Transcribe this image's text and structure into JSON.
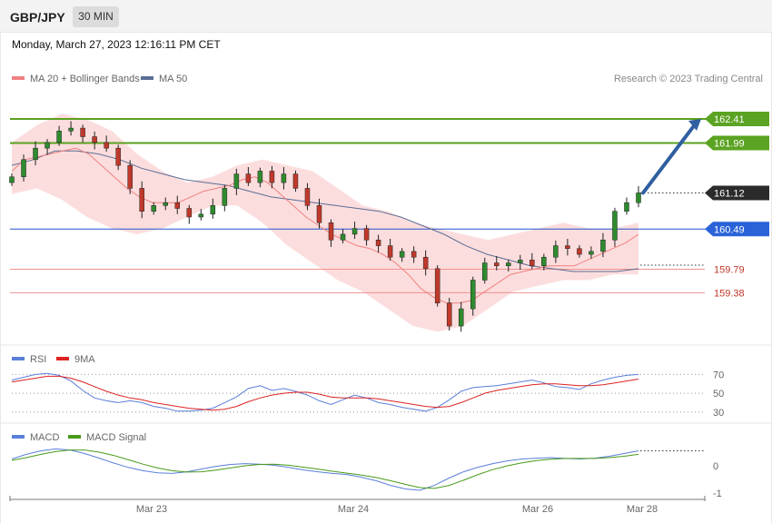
{
  "header": {
    "symbol": "GBP/JPY",
    "timeframe": "30 MIN",
    "datetime": "Monday, March 27, 2023 12:16:11 PM CET"
  },
  "chart_data": [
    {
      "type": "candlestick",
      "legend": [
        "MA 20 + Bollinger Bands",
        "MA 50"
      ],
      "credit": "Research © 2023 Trading Central",
      "ylim": [
        158.5,
        162.9
      ],
      "x_ticks": [
        "Mar 23",
        "Mar 24",
        "Mar 26",
        "Mar 28"
      ],
      "levels": [
        {
          "value": 162.41,
          "label": "162.41",
          "kind": "resistance"
        },
        {
          "value": 161.99,
          "label": "161.99",
          "kind": "resistance"
        },
        {
          "value": 161.12,
          "label": "161.12",
          "kind": "last"
        },
        {
          "value": 160.49,
          "label": "160.49",
          "kind": "pivot"
        },
        {
          "value": 159.79,
          "label": "159.79",
          "kind": "support"
        },
        {
          "value": 159.38,
          "label": "159.38",
          "kind": "support"
        }
      ],
      "projection_arrow": {
        "from": 161.12,
        "to": 162.41
      },
      "colors": {
        "up": "#2e8b2e",
        "down": "#c0392b",
        "ma20": "#f08080",
        "ma50": "#5a6e96",
        "band": "#fbd5d5",
        "resistance": "#5aa020",
        "pivot": "#2255cc",
        "support": "#c0392b",
        "last": "#333333",
        "arrow": "#2f5fa0"
      },
      "close": [
        161.4,
        161.7,
        161.9,
        162.0,
        162.2,
        162.25,
        162.1,
        162.0,
        161.9,
        161.6,
        161.2,
        160.8,
        160.9,
        160.95,
        160.85,
        160.7,
        160.75,
        160.9,
        161.2,
        161.45,
        161.3,
        161.5,
        161.3,
        161.45,
        161.2,
        160.9,
        160.6,
        160.3,
        160.4,
        160.5,
        160.3,
        160.2,
        160.0,
        160.1,
        160.0,
        159.8,
        159.2,
        158.8,
        159.1,
        159.6,
        159.9,
        159.85,
        159.9,
        159.95,
        159.85,
        160.0,
        160.2,
        160.15,
        160.05,
        160.1,
        160.3,
        160.8,
        160.95,
        161.12
      ],
      "ma20": [
        161.5,
        161.7,
        161.75,
        161.8,
        161.85,
        161.9,
        161.8,
        161.6,
        161.4,
        161.2,
        161.05,
        160.95,
        160.95,
        160.95,
        161.05,
        161.15,
        161.2,
        161.25,
        161.35,
        161.4,
        161.3,
        161.1,
        160.9,
        160.7,
        160.55,
        160.4,
        160.3,
        160.2,
        160.15,
        160.05,
        159.9,
        159.7,
        159.45,
        159.3,
        159.2,
        159.2,
        159.25,
        159.4,
        159.55,
        159.7,
        159.75,
        159.8,
        159.85,
        159.85,
        159.85,
        159.95,
        160.05,
        160.15,
        160.25,
        160.4
      ],
      "ma50": [
        161.6,
        161.7,
        161.85,
        161.85,
        161.8,
        161.7,
        161.55,
        161.45,
        161.35,
        161.3,
        161.25,
        161.15,
        161.05,
        161.0,
        160.95,
        160.9,
        160.85,
        160.8,
        160.7,
        160.55,
        160.4,
        160.2,
        160.05,
        159.95,
        159.85,
        159.8,
        159.75,
        159.75,
        159.75,
        159.8
      ],
      "bb_upper": [
        162.0,
        162.3,
        162.5,
        162.4,
        162.2,
        161.8,
        161.5,
        161.3,
        161.4,
        161.6,
        161.7,
        161.6,
        161.5,
        161.2,
        160.9,
        160.8,
        160.6,
        160.5,
        160.4,
        160.3,
        160.4,
        160.5,
        160.6,
        160.5,
        160.5,
        160.6
      ],
      "bb_lower": [
        161.1,
        161.2,
        161.0,
        160.7,
        160.5,
        160.4,
        160.5,
        160.7,
        160.9,
        160.9,
        160.6,
        160.2,
        159.9,
        159.6,
        159.4,
        159.1,
        158.8,
        158.7,
        158.8,
        159.1,
        159.4,
        159.5,
        159.6,
        159.6,
        159.7,
        159.7
      ]
    },
    {
      "type": "line",
      "name": "RSI",
      "legend": [
        "RSI",
        "9MA"
      ],
      "y_ticks": [
        "70",
        "50",
        "30"
      ],
      "ylim": [
        24,
        80
      ],
      "series": [
        {
          "name": "RSI",
          "values": [
            64,
            67,
            70,
            71,
            69,
            63,
            53,
            45,
            42,
            40,
            42,
            40,
            36,
            34,
            31,
            31,
            32,
            34,
            40,
            46,
            55,
            58,
            53,
            55,
            52,
            48,
            42,
            38,
            43,
            48,
            45,
            40,
            38,
            35,
            33,
            31,
            35,
            43,
            52,
            56,
            57,
            58,
            60,
            62,
            64,
            61,
            57,
            56,
            54,
            60,
            64,
            67,
            69,
            70
          ]
        },
        {
          "name": "9MA",
          "values": [
            62,
            64,
            66,
            68,
            68,
            66,
            62,
            57,
            52,
            48,
            45,
            43,
            40,
            38,
            36,
            34,
            33,
            32,
            33,
            36,
            41,
            45,
            48,
            50,
            51,
            51,
            49,
            46,
            45,
            45,
            45,
            44,
            42,
            40,
            38,
            36,
            35,
            36,
            40,
            45,
            50,
            53,
            55,
            57,
            59,
            60,
            60,
            59,
            58,
            58,
            59,
            61,
            63,
            65
          ]
        }
      ]
    },
    {
      "type": "line",
      "name": "MACD",
      "legend": [
        "MACD",
        "MACD Signal"
      ],
      "y_ticks": [
        "0",
        "-1"
      ],
      "ylim": [
        -1.1,
        0.9
      ],
      "series": [
        {
          "name": "MACD",
          "values": [
            0.25,
            0.42,
            0.55,
            0.62,
            0.58,
            0.45,
            0.28,
            0.1,
            -0.06,
            -0.18,
            -0.26,
            -0.28,
            -0.22,
            -0.12,
            -0.02,
            0.05,
            0.08,
            0.06,
            0.02,
            -0.06,
            -0.15,
            -0.22,
            -0.28,
            -0.32,
            -0.42,
            -0.55,
            -0.72,
            -0.85,
            -0.9,
            -0.72,
            -0.45,
            -0.22,
            -0.05,
            0.08,
            0.18,
            0.25,
            0.28,
            0.3,
            0.27,
            0.25,
            0.28,
            0.35,
            0.45,
            0.55
          ]
        },
        {
          "name": "MACD Signal",
          "values": [
            0.2,
            0.3,
            0.42,
            0.52,
            0.58,
            0.58,
            0.5,
            0.38,
            0.22,
            0.06,
            -0.08,
            -0.18,
            -0.23,
            -0.22,
            -0.16,
            -0.08,
            0.0,
            0.05,
            0.06,
            0.02,
            -0.05,
            -0.12,
            -0.2,
            -0.27,
            -0.34,
            -0.43,
            -0.55,
            -0.68,
            -0.8,
            -0.83,
            -0.72,
            -0.53,
            -0.32,
            -0.14,
            0.0,
            0.11,
            0.19,
            0.24,
            0.27,
            0.27,
            0.27,
            0.3,
            0.35,
            0.42
          ]
        }
      ]
    }
  ]
}
